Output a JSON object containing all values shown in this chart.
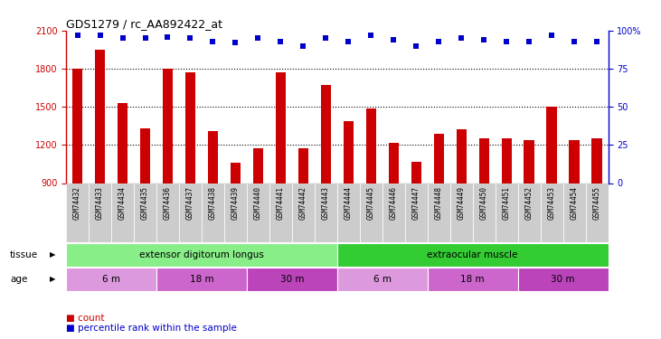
{
  "title": "GDS1279 / rc_AA892422_at",
  "samples": [
    "GSM74432",
    "GSM74433",
    "GSM74434",
    "GSM74435",
    "GSM74436",
    "GSM74437",
    "GSM74438",
    "GSM74439",
    "GSM74440",
    "GSM74441",
    "GSM74442",
    "GSM74443",
    "GSM74444",
    "GSM74445",
    "GSM74446",
    "GSM74447",
    "GSM74448",
    "GSM74449",
    "GSM74450",
    "GSM74451",
    "GSM74452",
    "GSM74453",
    "GSM74454",
    "GSM74455"
  ],
  "counts": [
    1800,
    1950,
    1530,
    1330,
    1800,
    1770,
    1310,
    1060,
    1175,
    1770,
    1175,
    1670,
    1390,
    1490,
    1220,
    1070,
    1290,
    1320,
    1250,
    1250,
    1240,
    1500,
    1240,
    1250
  ],
  "percentile": [
    97,
    97,
    95,
    95,
    96,
    95,
    93,
    92,
    95,
    93,
    90,
    95,
    93,
    97,
    94,
    90,
    93,
    95,
    94,
    93,
    93,
    97,
    93,
    93
  ],
  "ylim_left": [
    900,
    2100
  ],
  "ylim_right": [
    0,
    100
  ],
  "yticks_left": [
    900,
    1200,
    1500,
    1800,
    2100
  ],
  "yticks_right": [
    0,
    25,
    50,
    75,
    100
  ],
  "bar_color": "#cc0000",
  "dot_color": "#0000cc",
  "tissue_groups": [
    {
      "label": "extensor digitorum longus",
      "start": 0,
      "end": 12,
      "color": "#88ee88"
    },
    {
      "label": "extraocular muscle",
      "start": 12,
      "end": 24,
      "color": "#33cc33"
    }
  ],
  "age_groups": [
    {
      "label": "6 m",
      "start": 0,
      "end": 4,
      "color": "#dd99dd"
    },
    {
      "label": "18 m",
      "start": 4,
      "end": 8,
      "color": "#cc66cc"
    },
    {
      "label": "30 m",
      "start": 8,
      "end": 12,
      "color": "#bb44bb"
    },
    {
      "label": "6 m",
      "start": 12,
      "end": 16,
      "color": "#dd99dd"
    },
    {
      "label": "18 m",
      "start": 16,
      "end": 20,
      "color": "#cc66cc"
    },
    {
      "label": "30 m",
      "start": 20,
      "end": 24,
      "color": "#bb44bb"
    }
  ],
  "tissue_label": "tissue",
  "age_label": "age",
  "legend_count_label": "count",
  "legend_pct_label": "percentile rank within the sample",
  "bg_color": "#ffffff",
  "xticklabel_bg": "#cccccc"
}
